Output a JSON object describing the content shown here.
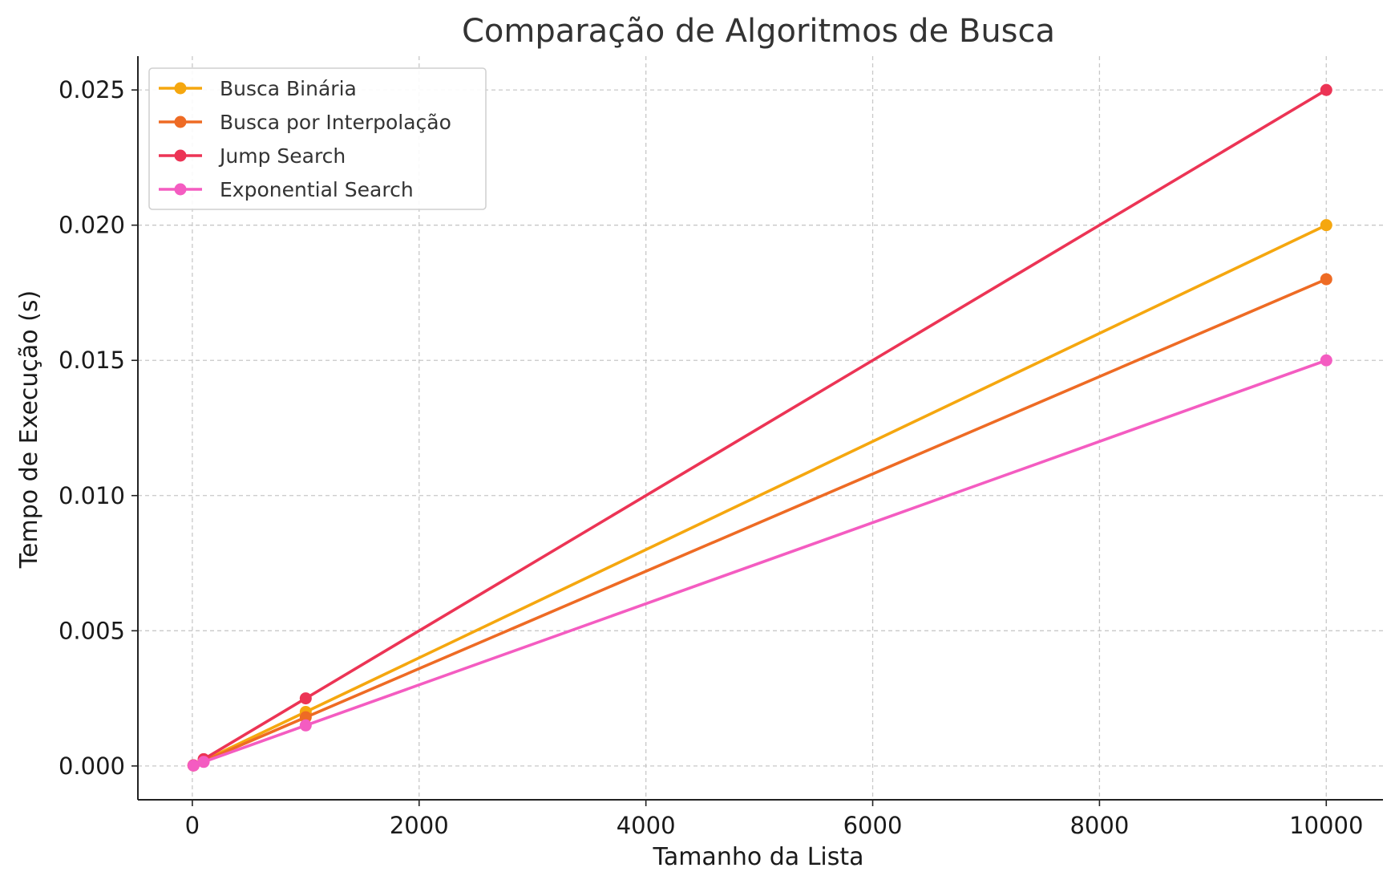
{
  "chart_data": {
    "type": "line",
    "title": "Comparação de Algoritmos de Busca",
    "xlabel": "Tamanho da Lista",
    "ylabel": "Tempo de Execução (s)",
    "x": [
      10,
      100,
      1000,
      10000
    ],
    "xlim": [
      -480,
      10500
    ],
    "ylim": [
      -0.00125,
      0.02625
    ],
    "xticks": [
      0,
      2000,
      4000,
      6000,
      8000,
      10000
    ],
    "xtick_labels": [
      "0",
      "2000",
      "4000",
      "6000",
      "8000",
      "10000"
    ],
    "yticks": [
      0,
      0.005,
      0.01,
      0.015,
      0.02,
      0.025
    ],
    "ytick_labels": [
      "0.000",
      "0.005",
      "0.010",
      "0.015",
      "0.020",
      "0.025"
    ],
    "grid": true,
    "legend_position": "top-left",
    "series": [
      {
        "name": "Busca Binária",
        "color": "#F5A70F",
        "values": [
          2e-05,
          0.0002,
          0.002,
          0.02
        ]
      },
      {
        "name": "Busca por Interpolação",
        "color": "#EE6B24",
        "values": [
          1.8e-05,
          0.00018,
          0.0018,
          0.018
        ]
      },
      {
        "name": "Jump Search",
        "color": "#EC3455",
        "values": [
          2.5e-05,
          0.00025,
          0.0025,
          0.025
        ]
      },
      {
        "name": "Exponential Search",
        "color": "#F45CC1",
        "values": [
          1.5e-05,
          0.00015,
          0.0015,
          0.015
        ]
      }
    ]
  }
}
